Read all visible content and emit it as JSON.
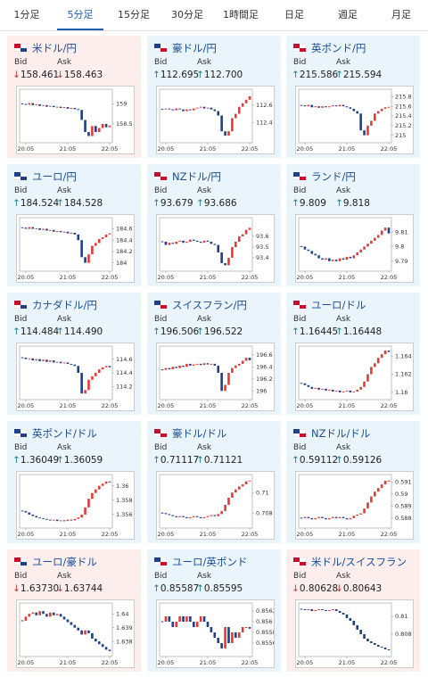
{
  "tabs": [
    "1分足",
    "5分足",
    "15分足",
    "30分足",
    "1時間足",
    "日足",
    "週足",
    "月足"
  ],
  "active_tab": 1,
  "labels": {
    "bid": "Bid",
    "ask": "Ask"
  },
  "time_axis": {
    "xlim": [
      0,
      25
    ],
    "xticks": [
      {
        "value": 1,
        "label": "20:05"
      },
      {
        "value": 13,
        "label": "21:05"
      },
      {
        "value": 25,
        "label": "22:05"
      }
    ]
  },
  "cards": [
    {
      "pair": "米ドル/円",
      "trend": "↓",
      "bid": "158.461",
      "ask": "158.463",
      "chart": {
        "ylim": [
          158.1,
          159.3
        ],
        "yticks": [
          159,
          158.5
        ],
        "closes": [
          159.0,
          158.98,
          159.02,
          158.97,
          158.99,
          158.95,
          158.97,
          158.93,
          158.95,
          158.92,
          158.93,
          158.9,
          158.92,
          158.88,
          158.9,
          158.87,
          158.85,
          158.6,
          158.3,
          158.2,
          158.45,
          158.3,
          158.4,
          158.5,
          158.42,
          158.46
        ]
      }
    },
    {
      "pair": "豪ドル/円",
      "trend": "↑",
      "bid": "112.695",
      "ask": "112.700",
      "chart": {
        "ylim": [
          112.2,
          112.75
        ],
        "yticks": [
          112.6,
          112.4
        ],
        "closes": [
          112.55,
          112.56,
          112.55,
          112.54,
          112.56,
          112.55,
          112.53,
          112.55,
          112.54,
          112.56,
          112.57,
          112.58,
          112.56,
          112.57,
          112.55,
          112.53,
          112.48,
          112.3,
          112.25,
          112.3,
          112.45,
          112.5,
          112.58,
          112.62,
          112.66,
          112.7
        ]
      }
    },
    {
      "pair": "英ポンド/円",
      "trend": "↑",
      "bid": "215.586",
      "ask": "215.594",
      "chart": {
        "ylim": [
          214.9,
          215.9
        ],
        "yticks": [
          215.8,
          215.6,
          215.4,
          215.2,
          215
        ],
        "closes": [
          215.62,
          215.6,
          215.63,
          215.58,
          215.6,
          215.57,
          215.6,
          215.58,
          215.6,
          215.62,
          215.6,
          215.63,
          215.6,
          215.58,
          215.55,
          215.5,
          215.45,
          215.1,
          215.0,
          215.2,
          215.3,
          215.45,
          215.5,
          215.55,
          215.58,
          215.59
        ]
      }
    },
    {
      "pair": "ユーロ/円",
      "trend": "↑",
      "bid": "184.524",
      "ask": "184.528",
      "chart": {
        "ylim": [
          183.9,
          184.75
        ],
        "yticks": [
          184.6,
          184.4,
          184.2,
          184
        ],
        "closes": [
          184.62,
          184.6,
          184.63,
          184.6,
          184.61,
          184.58,
          184.6,
          184.57,
          184.58,
          184.55,
          184.56,
          184.54,
          184.55,
          184.52,
          184.53,
          184.5,
          184.4,
          184.1,
          184.0,
          184.15,
          184.3,
          184.35,
          184.42,
          184.45,
          184.5,
          184.52
        ]
      }
    },
    {
      "pair": "NZドル/円",
      "trend": "↑",
      "bid": "93.679",
      "ask": "93.686",
      "chart": {
        "ylim": [
          93.3,
          93.75
        ],
        "yticks": [
          93.6,
          93.5,
          93.4
        ],
        "closes": [
          93.55,
          93.52,
          93.54,
          93.53,
          93.55,
          93.56,
          93.54,
          93.55,
          93.57,
          93.56,
          93.55,
          93.54,
          93.56,
          93.55,
          93.53,
          93.52,
          93.45,
          93.35,
          93.33,
          93.4,
          93.5,
          93.55,
          93.6,
          93.62,
          93.66,
          93.68
        ]
      }
    },
    {
      "pair": "ランド/円",
      "trend": "↑",
      "bid": "9.809",
      "ask": "9.818",
      "chart": {
        "ylim": [
          9.785,
          9.818
        ],
        "yticks": [
          9.81,
          9.8,
          9.79
        ],
        "closes": [
          9.8,
          9.798,
          9.797,
          9.795,
          9.794,
          9.792,
          9.791,
          9.792,
          9.79,
          9.791,
          9.79,
          9.792,
          9.791,
          9.793,
          9.792,
          9.794,
          9.796,
          9.798,
          9.8,
          9.802,
          9.804,
          9.806,
          9.808,
          9.811,
          9.813,
          9.809
        ]
      }
    },
    {
      "pair": "カナダドル/円",
      "trend": "↑",
      "bid": "114.484",
      "ask": "114.490",
      "chart": {
        "ylim": [
          114.05,
          114.75
        ],
        "yticks": [
          114.6,
          114.4,
          114.2
        ],
        "closes": [
          114.62,
          114.6,
          114.61,
          114.58,
          114.6,
          114.57,
          114.59,
          114.56,
          114.58,
          114.55,
          114.56,
          114.54,
          114.55,
          114.53,
          114.52,
          114.5,
          114.4,
          114.1,
          114.15,
          114.3,
          114.35,
          114.4,
          114.45,
          114.48,
          114.5,
          114.48
        ]
      }
    },
    {
      "pair": "スイスフラン/円",
      "trend": "↑",
      "bid": "196.506",
      "ask": "196.522",
      "chart": {
        "ylim": [
          195.9,
          196.7
        ],
        "yticks": [
          196.6,
          196.4,
          196.2,
          196
        ],
        "closes": [
          196.35,
          196.38,
          196.36,
          196.4,
          196.38,
          196.42,
          196.4,
          196.45,
          196.42,
          196.44,
          196.45,
          196.43,
          196.46,
          196.44,
          196.45,
          196.42,
          196.3,
          196.0,
          196.1,
          196.3,
          196.38,
          196.42,
          196.45,
          196.5,
          196.55,
          196.51
        ]
      }
    },
    {
      "pair": "ユーロ/ドル",
      "trend": "↑",
      "bid": "1.16445",
      "ask": "1.16448",
      "chart": {
        "ylim": [
          1.1595,
          1.1648
        ],
        "yticks": [
          1.164,
          1.162,
          1.16
        ],
        "closes": [
          1.161,
          1.1608,
          1.1606,
          1.1604,
          1.1605,
          1.1603,
          1.1604,
          1.1602,
          1.1603,
          1.1601,
          1.1602,
          1.16,
          1.1601,
          1.1602,
          1.16,
          1.1601,
          1.1603,
          1.1606,
          1.1612,
          1.162,
          1.1628,
          1.1632,
          1.1638,
          1.1642,
          1.1646,
          1.16445
        ]
      }
    },
    {
      "pair": "英ポンド/ドル",
      "trend": "↑",
      "bid": "1.36049",
      "ask": "1.36059",
      "chart": {
        "ylim": [
          1.3545,
          1.3612
        ],
        "yticks": [
          1.36,
          1.358,
          1.356
        ],
        "closes": [
          1.3565,
          1.3563,
          1.356,
          1.3558,
          1.3556,
          1.3555,
          1.3554,
          1.3553,
          1.3552,
          1.3553,
          1.3551,
          1.3552,
          1.3551,
          1.3553,
          1.3552,
          1.3554,
          1.3556,
          1.356,
          1.357,
          1.3582,
          1.359,
          1.3595,
          1.36,
          1.3603,
          1.3606,
          1.36049
        ]
      }
    },
    {
      "pair": "豪ドル/ドル",
      "trend": "↑",
      "bid": "0.71117",
      "ask": "0.71121",
      "chart": {
        "ylim": [
          0.7068,
          0.7115
        ],
        "yticks": [
          0.71,
          0.708
        ],
        "closes": [
          0.708,
          0.7079,
          0.7078,
          0.7077,
          0.7076,
          0.7077,
          0.7076,
          0.7075,
          0.7076,
          0.7077,
          0.7076,
          0.7075,
          0.7076,
          0.7077,
          0.7078,
          0.7077,
          0.7079,
          0.7082,
          0.7088,
          0.7095,
          0.71,
          0.7103,
          0.7106,
          0.7108,
          0.7111,
          0.71117
        ]
      }
    },
    {
      "pair": "NZドル/ドル",
      "trend": "↑",
      "bid": "0.59112",
      "ask": "0.59126",
      "chart": {
        "ylim": [
          0.5874,
          0.5914
        ],
        "yticks": [
          0.591,
          0.59,
          0.589,
          0.588
        ],
        "closes": [
          0.588,
          0.5881,
          0.588,
          0.5879,
          0.588,
          0.5881,
          0.588,
          0.5879,
          0.588,
          0.5881,
          0.588,
          0.5881,
          0.588,
          0.5879,
          0.588,
          0.5882,
          0.5883,
          0.5884,
          0.5888,
          0.5893,
          0.5898,
          0.5902,
          0.5905,
          0.5908,
          0.5911,
          0.59112
        ]
      }
    },
    {
      "pair": "ユーロ/豪ドル",
      "trend": "↓",
      "bid": "1.63730",
      "ask": "1.63744",
      "chart": {
        "ylim": [
          1.6371,
          1.6406
        ],
        "yticks": [
          1.64,
          1.639,
          1.638
        ],
        "closes": [
          1.6395,
          1.6398,
          1.64,
          1.6401,
          1.6399,
          1.6402,
          1.64,
          1.6398,
          1.6401,
          1.6399,
          1.64,
          1.6398,
          1.6396,
          1.6394,
          1.6392,
          1.639,
          1.6388,
          1.6385,
          1.6388,
          1.6386,
          1.6382,
          1.638,
          1.6378,
          1.6376,
          1.6374,
          1.6373
        ]
      }
    },
    {
      "pair": "ユーロ/英ポンド",
      "trend": "↑",
      "bid": "0.85587",
      "ask": "0.85595",
      "chart": {
        "ylim": [
          0.8554,
          0.8563
        ],
        "yticks": [
          0.8562,
          0.856,
          0.8558,
          0.8556
        ],
        "closes": [
          0.856,
          0.8561,
          0.856,
          0.8559,
          0.856,
          0.8561,
          0.856,
          0.8561,
          0.856,
          0.8559,
          0.856,
          0.8561,
          0.856,
          0.8559,
          0.8558,
          0.8557,
          0.8556,
          0.8555,
          0.8559,
          0.8556,
          0.8558,
          0.8557,
          0.8558,
          0.8559,
          0.8559,
          0.85587
        ]
      }
    },
    {
      "pair": "米ドル/スイスフラン",
      "trend": "↓",
      "bid": "0.80628",
      "ask": "0.80643",
      "chart": {
        "ylim": [
          0.8058,
          0.8112
        ],
        "yticks": [
          0.81,
          0.808
        ],
        "closes": [
          0.8108,
          0.8107,
          0.8108,
          0.8106,
          0.8107,
          0.8108,
          0.8107,
          0.8106,
          0.8107,
          0.8108,
          0.8106,
          0.8104,
          0.8102,
          0.8098,
          0.8095,
          0.809,
          0.8085,
          0.808,
          0.8075,
          0.8072,
          0.807,
          0.8068,
          0.8066,
          0.8065,
          0.8063,
          0.80628
        ]
      }
    }
  ]
}
